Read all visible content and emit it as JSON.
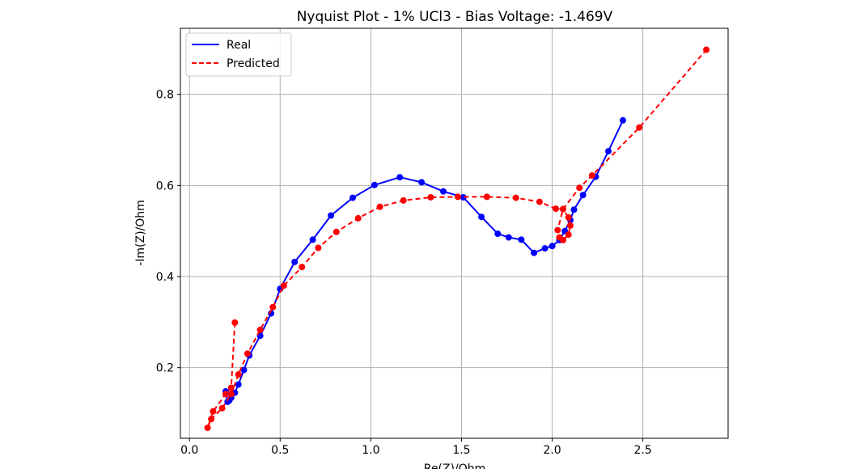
{
  "chart_data": {
    "type": "line",
    "title": "Nyquist Plot - 1% UCl3 - Bias Voltage: -1.469V",
    "xlabel": "Re(Z)/Ohm",
    "ylabel": "-Im(Z)/Ohm",
    "xlim": [
      -0.05,
      2.97
    ],
    "ylim": [
      0.045,
      0.945
    ],
    "xticks": [
      0.0,
      0.5,
      1.0,
      1.5,
      2.0,
      2.5
    ],
    "xtick_labels": [
      "0.0",
      "0.5",
      "1.0",
      "1.5",
      "2.0",
      "2.5"
    ],
    "yticks": [
      0.2,
      0.4,
      0.6,
      0.8
    ],
    "ytick_labels": [
      "0.2",
      "0.4",
      "0.6",
      "0.8"
    ],
    "grid": true,
    "legend": {
      "placement": "top-left",
      "entries": [
        "Real",
        "Predicted"
      ]
    },
    "series": [
      {
        "name": "Real",
        "color": "#0000ff",
        "style": "solid",
        "markers": true,
        "x": [
          0.2,
          0.21,
          0.22,
          0.23,
          0.25,
          0.27,
          0.3,
          0.33,
          0.39,
          0.45,
          0.5,
          0.58,
          0.68,
          0.78,
          0.9,
          1.02,
          1.16,
          1.28,
          1.4,
          1.51,
          1.61,
          1.7,
          1.76,
          1.83,
          1.9,
          1.96,
          2.0,
          2.04,
          2.07,
          2.1,
          2.12,
          2.17,
          2.24,
          2.31,
          2.39
        ],
        "y": [
          0.148,
          0.125,
          0.128,
          0.134,
          0.145,
          0.163,
          0.195,
          0.227,
          0.27,
          0.319,
          0.373,
          0.432,
          0.481,
          0.534,
          0.573,
          0.601,
          0.618,
          0.607,
          0.587,
          0.574,
          0.531,
          0.494,
          0.486,
          0.481,
          0.452,
          0.462,
          0.467,
          0.48,
          0.5,
          0.524,
          0.547,
          0.579,
          0.619,
          0.675,
          0.743
        ]
      },
      {
        "name": "Predicted",
        "color": "#ff0000",
        "style": "dashed",
        "markers": true,
        "x": [
          0.25,
          0.23,
          0.2,
          0.13,
          0.1,
          0.12,
          0.18,
          0.23,
          0.27,
          0.32,
          0.39,
          0.46,
          0.52,
          0.62,
          0.71,
          0.81,
          0.93,
          1.05,
          1.18,
          1.33,
          1.48,
          1.64,
          1.8,
          1.93,
          2.02,
          2.06,
          2.09,
          2.1,
          2.09,
          2.06,
          2.04,
          2.03,
          2.06,
          2.15,
          2.22,
          2.48,
          2.85
        ],
        "y": [
          0.299,
          0.156,
          0.142,
          0.104,
          0.068,
          0.087,
          0.111,
          0.142,
          0.185,
          0.231,
          0.283,
          0.333,
          0.38,
          0.421,
          0.463,
          0.498,
          0.528,
          0.553,
          0.567,
          0.574,
          0.575,
          0.575,
          0.573,
          0.564,
          0.549,
          0.548,
          0.53,
          0.512,
          0.492,
          0.48,
          0.486,
          0.502,
          0.548,
          0.595,
          0.622,
          0.727,
          0.898
        ]
      }
    ]
  }
}
